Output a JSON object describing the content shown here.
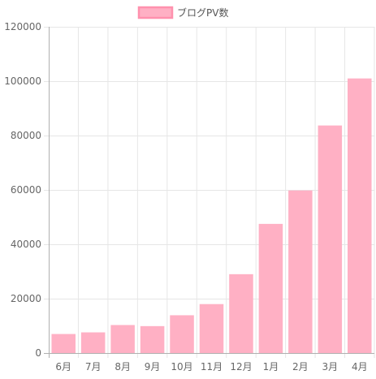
{
  "chart_data": {
    "type": "bar",
    "categories": [
      "6月",
      "7月",
      "8月",
      "9月",
      "10月",
      "11月",
      "12月",
      "1月",
      "2月",
      "3月",
      "4月"
    ],
    "series": [
      {
        "name": "ブログPV数",
        "values": [
          7000,
          7600,
          10300,
          9900,
          13900,
          18000,
          29000,
          47500,
          59800,
          83700,
          101000
        ],
        "color": "#ffb0c4",
        "border_color": "#ff91ae"
      }
    ],
    "yticks": [
      "0",
      "20000",
      "40000",
      "60000",
      "80000",
      "100000",
      "120000"
    ],
    "ylim": [
      0,
      120000
    ],
    "grid": true,
    "legend_position": "top-center",
    "colors": {
      "grid": "#e6e6e6",
      "axis": "#b0b0b0",
      "tick_text": "#666666",
      "legend_text": "#555555"
    }
  }
}
